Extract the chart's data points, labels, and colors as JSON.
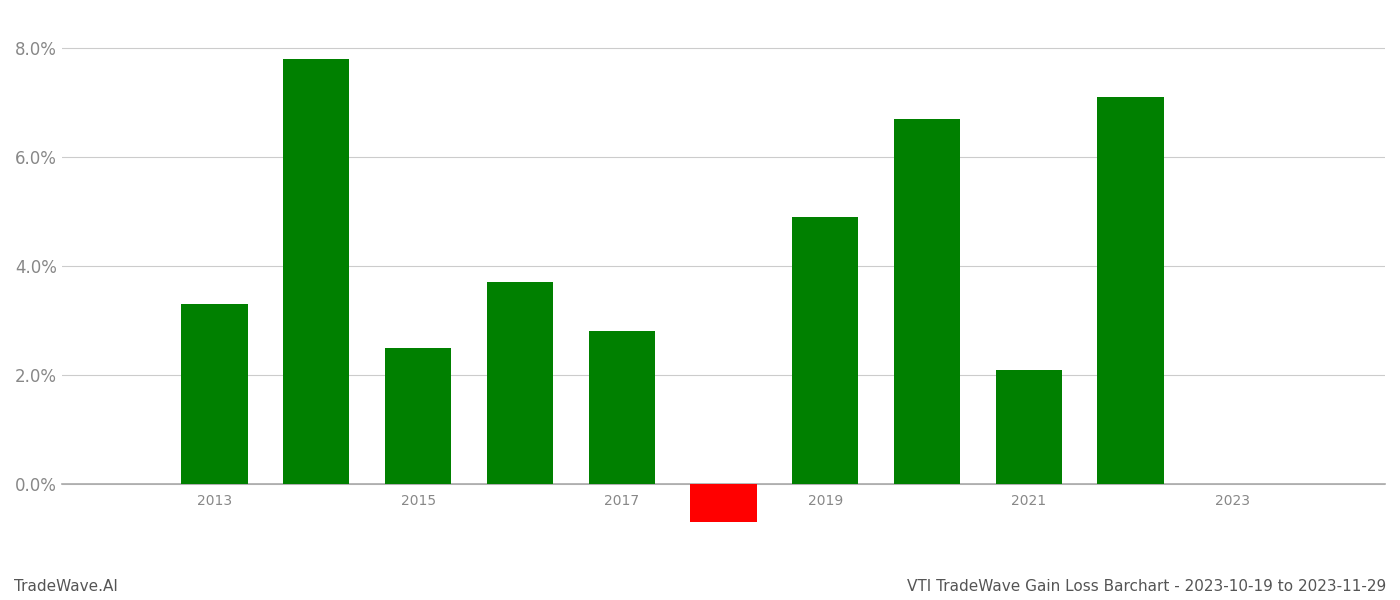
{
  "years": [
    2013,
    2014,
    2015,
    2016,
    2017,
    2018,
    2019,
    2020,
    2021,
    2022
  ],
  "values": [
    0.033,
    0.078,
    0.025,
    0.037,
    0.028,
    -0.007,
    0.049,
    0.067,
    0.021,
    0.071
  ],
  "bar_colors": [
    "#008000",
    "#008000",
    "#008000",
    "#008000",
    "#008000",
    "#ff0000",
    "#008000",
    "#008000",
    "#008000",
    "#008000"
  ],
  "ylim_min": -0.013,
  "ylim_max": 0.086,
  "yticks": [
    0.0,
    0.02,
    0.04,
    0.06,
    0.08
  ],
  "xticks": [
    2013,
    2015,
    2017,
    2019,
    2021,
    2023
  ],
  "footer_left": "TradeWave.AI",
  "footer_right": "VTI TradeWave Gain Loss Barchart - 2023-10-19 to 2023-11-29",
  "background_color": "#ffffff",
  "grid_color": "#cccccc",
  "bar_width": 0.65,
  "xlim_min": 2011.5,
  "xlim_max": 2024.5
}
